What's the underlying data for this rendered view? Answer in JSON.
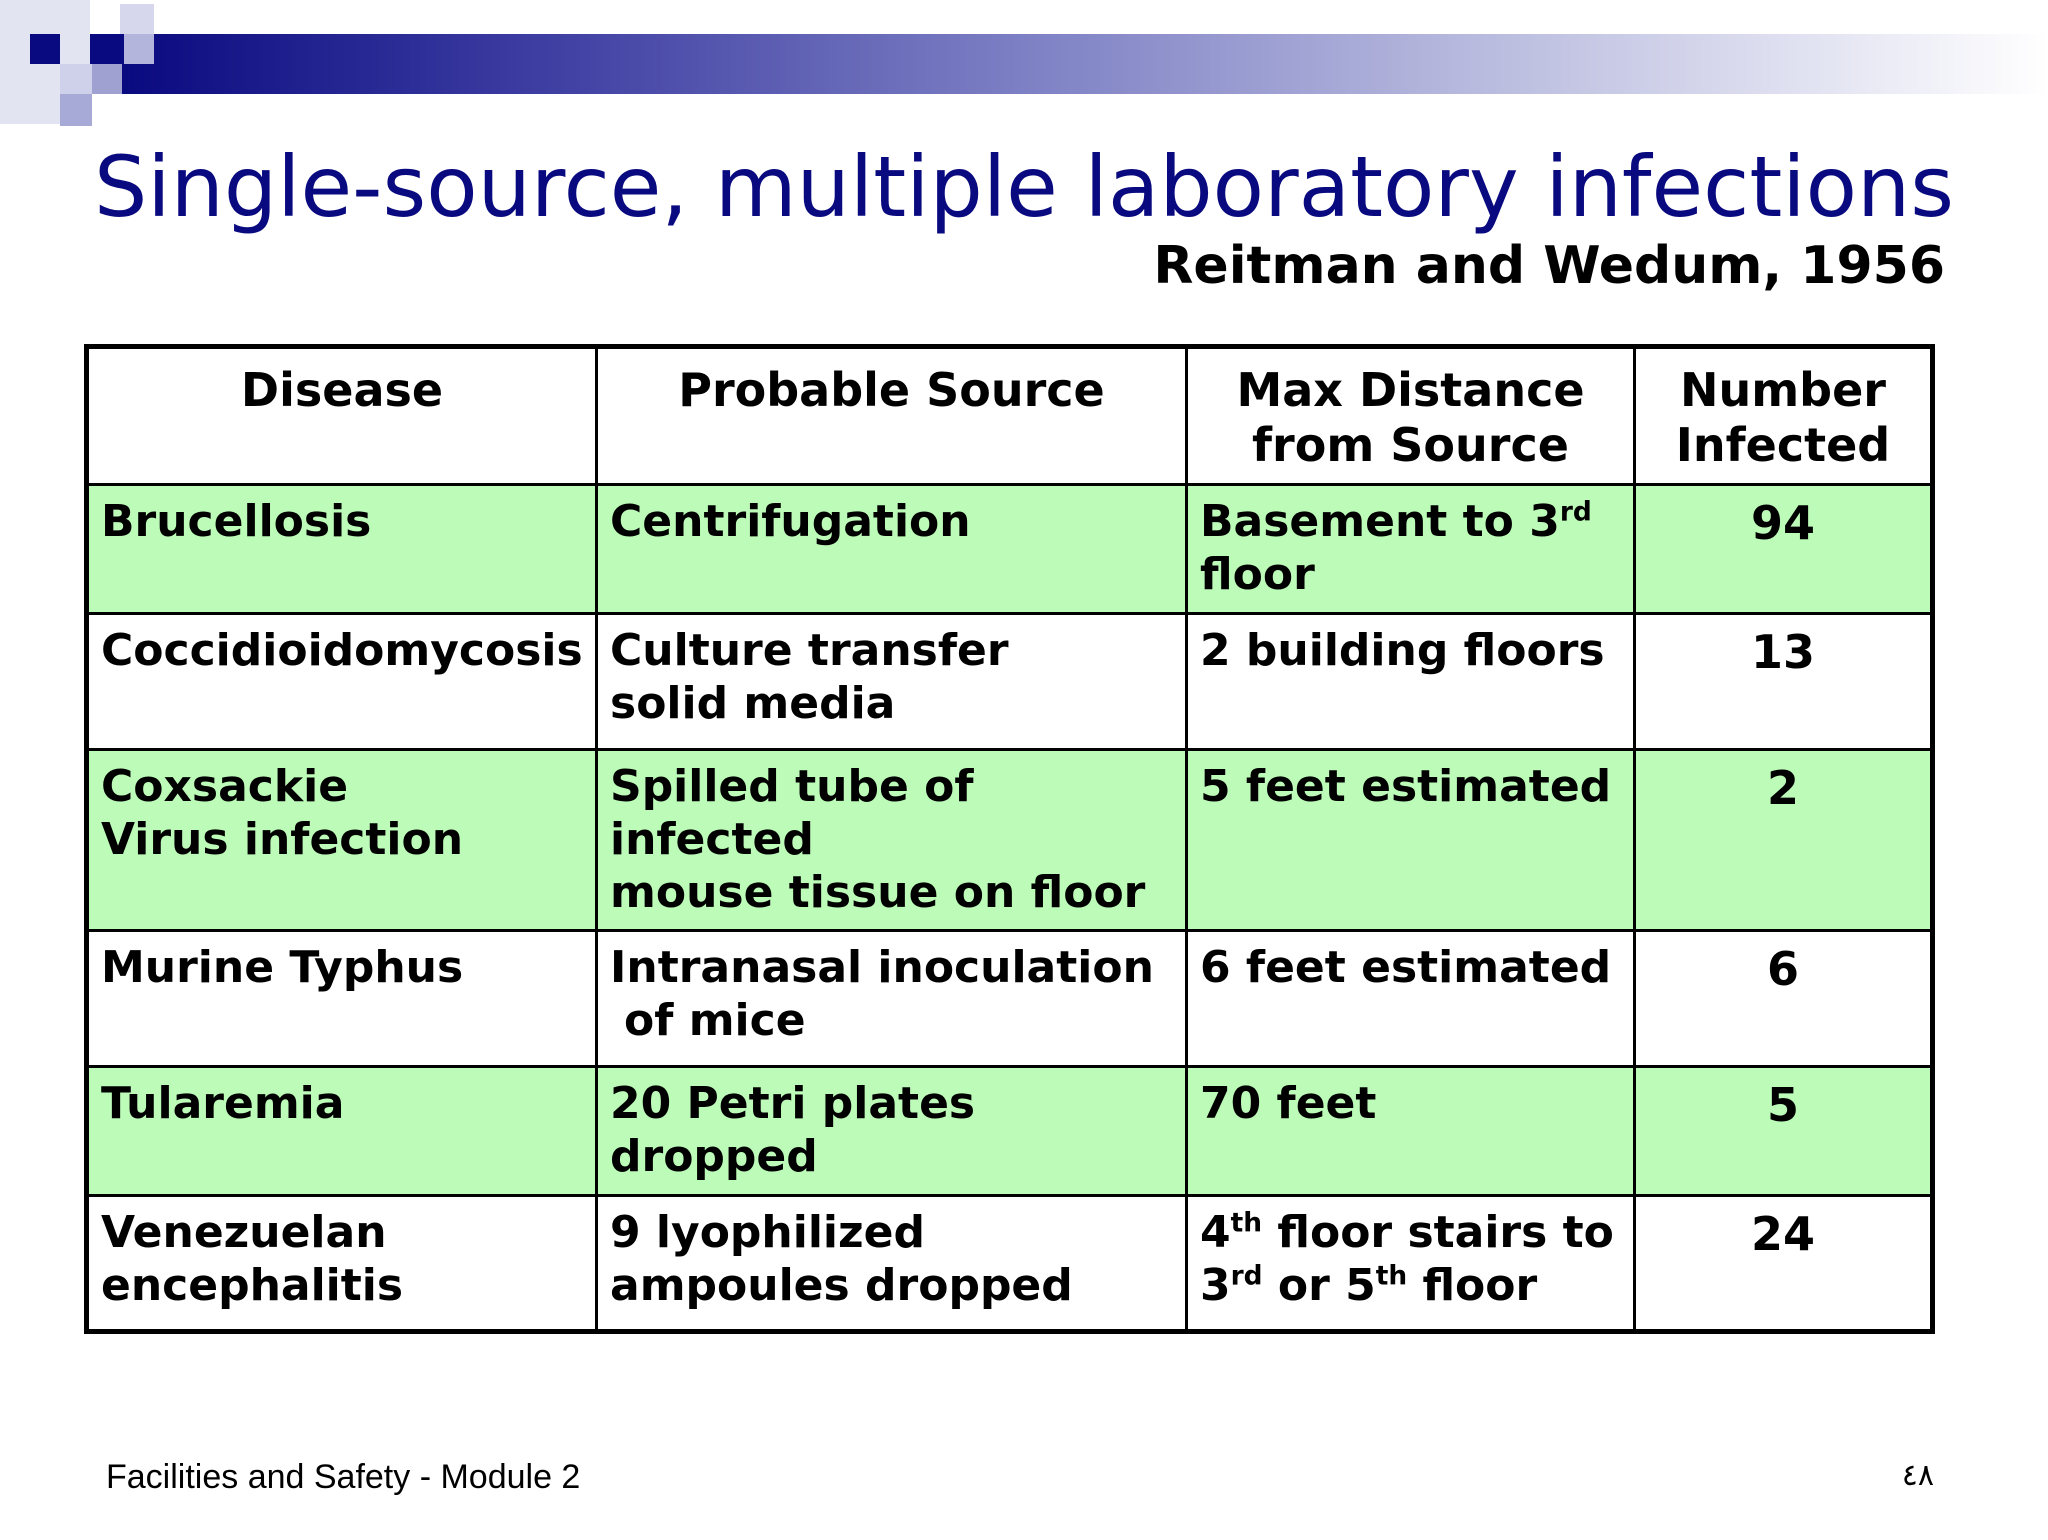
{
  "slide": {
    "title": "Single-source, multiple laboratory infections",
    "subtitle": "Reitman and Wedum, 1956",
    "footer": "Facilities and Safety - Module 2",
    "page_number": "٤٨",
    "accent_color": "#0a0a80",
    "row_highlight_color": "#bdfbb8"
  },
  "table": {
    "headers": {
      "disease": "Disease",
      "source": "Probable Source",
      "distance_line1": "Max Distance",
      "distance_line2": "from Source",
      "number_line1": "Number",
      "number_line2": "Infected"
    },
    "rows": [
      {
        "disease_line1": "Brucellosis",
        "source_line1": "Centrifugation",
        "distance_a": "Basement to 3",
        "distance_a_sup": "rd",
        "distance_b": "floor",
        "number": "94"
      },
      {
        "disease_line1": "Coccidioidomycosis",
        "source_line1": "Culture transfer",
        "source_line2": "solid media",
        "distance_a": "2 building floors",
        "number": "13"
      },
      {
        "disease_line1": "Coxsackie",
        "disease_line2": "Virus infection",
        "source_line1": "Spilled tube of infected",
        "source_line2": "mouse tissue on floor",
        "distance_a": "5 feet estimated",
        "number": "2"
      },
      {
        "disease_line1": "Murine Typhus",
        "source_line1": "Intranasal inoculation",
        "source_line2": "of mice",
        "distance_a": "6 feet estimated",
        "number": "6"
      },
      {
        "disease_line1": "Tularemia",
        "source_line1": "20 Petri plates",
        "source_line2": "dropped",
        "distance_a": "70 feet",
        "number": "5"
      },
      {
        "disease_line1": "Venezuelan",
        "disease_line2": "encephalitis",
        "source_line1": "9 lyophilized",
        "source_line2": "ampoules dropped",
        "distance_p1": "4",
        "distance_p1_sup": "th",
        "distance_p2": " floor stairs to",
        "distance_p3": "3",
        "distance_p3_sup": "rd",
        "distance_p4": " or 5",
        "distance_p4_sup": "th",
        "distance_p5": " floor",
        "number": "24"
      }
    ]
  }
}
